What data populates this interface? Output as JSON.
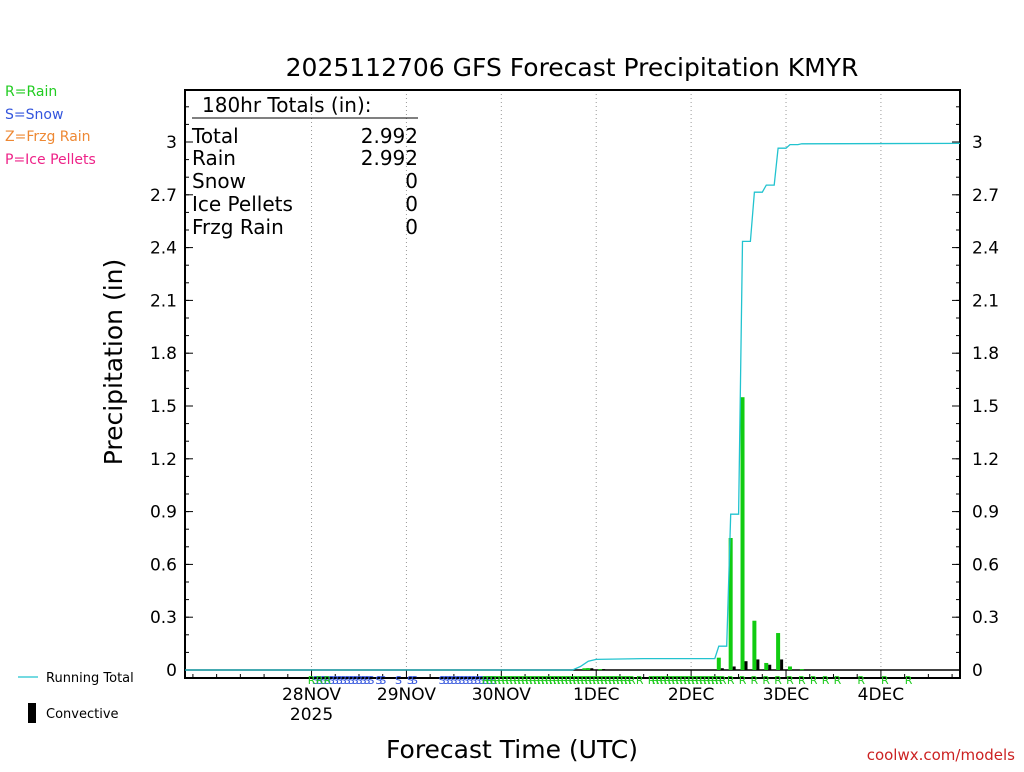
{
  "chart_data": {
    "type": "bar",
    "title": "2025112706 GFS Forecast Precipitation KMYR",
    "xlabel": "Forecast Time (UTC)",
    "ylabel": "Precipitation (in)",
    "ylim": [
      0,
      3.3
    ],
    "xlim_hours": [
      -14,
      182
    ],
    "yticks": [
      0,
      0.3,
      0.6,
      0.9,
      1.2,
      1.5,
      1.8,
      2.1,
      2.4,
      2.7,
      3
    ],
    "ytick_labels": [
      "0",
      "0.3",
      "0.6",
      "0.9",
      "1.2",
      "1.5",
      "1.8",
      "2.1",
      "2.4",
      "2.7",
      "3"
    ],
    "xticks": [
      {
        "hour": 18,
        "label": "28NOV",
        "sublabel": "2025"
      },
      {
        "hour": 42,
        "label": "29NOV",
        "sublabel": ""
      },
      {
        "hour": 66,
        "label": "30NOV",
        "sublabel": ""
      },
      {
        "hour": 90,
        "label": "1DEC",
        "sublabel": ""
      },
      {
        "hour": 114,
        "label": "2DEC",
        "sublabel": ""
      },
      {
        "hour": 138,
        "label": "3DEC",
        "sublabel": ""
      },
      {
        "hour": 162,
        "label": "4DEC",
        "sublabel": ""
      }
    ],
    "grid": "vertical-dotted",
    "legend_types": [
      {
        "code": "R",
        "text": "R=Rain",
        "color": "#22cc22"
      },
      {
        "code": "S",
        "text": "S=Snow",
        "color": "#3355dd"
      },
      {
        "code": "Z",
        "text": "Z=Frzg Rain",
        "color": "#ee8833"
      },
      {
        "code": "P",
        "text": "P=Ice Pellets",
        "color": "#ee2288"
      }
    ],
    "legend_series": {
      "running_total": "Running Total",
      "convective": "Convective"
    },
    "colors": {
      "running_total": "#22c3cf",
      "precip_bar": "#11cc11",
      "convective": "#000000",
      "grid": "#999999"
    },
    "totals": {
      "header": "180hr Totals (in):",
      "rows": [
        {
          "label": "Total",
          "value": "2.992"
        },
        {
          "label": "Rain",
          "value": "2.992"
        },
        {
          "label": "Snow",
          "value": "0"
        },
        {
          "label": "Ice Pellets",
          "value": "0"
        },
        {
          "label": "Frzg Rain",
          "value": "0"
        }
      ]
    },
    "bars": [
      {
        "hour": 87,
        "value": 0.01,
        "conv": 0.01
      },
      {
        "hour": 88,
        "value": 0.01,
        "conv": 0.01
      },
      {
        "hour": 91,
        "value": 0.005,
        "conv": 0.005
      },
      {
        "hour": 121,
        "value": 0.07,
        "conv": 0.01
      },
      {
        "hour": 124,
        "value": 0.75,
        "conv": 0.02
      },
      {
        "hour": 127,
        "value": 1.55,
        "conv": 0.05
      },
      {
        "hour": 130,
        "value": 0.28,
        "conv": 0.06
      },
      {
        "hour": 133,
        "value": 0.04,
        "conv": 0.03
      },
      {
        "hour": 136,
        "value": 0.21,
        "conv": 0.06
      },
      {
        "hour": 139,
        "value": 0.02,
        "conv": 0.0
      },
      {
        "hour": 142,
        "value": 0.005,
        "conv": 0.0
      }
    ],
    "running_total": [
      [
        -14,
        0
      ],
      [
        84,
        0
      ],
      [
        86,
        0.02
      ],
      [
        88,
        0.05
      ],
      [
        90,
        0.06
      ],
      [
        102,
        0.065
      ],
      [
        120,
        0.065
      ],
      [
        121,
        0.135
      ],
      [
        123,
        0.135
      ],
      [
        124,
        0.885
      ],
      [
        126,
        0.885
      ],
      [
        127,
        2.435
      ],
      [
        129,
        2.435
      ],
      [
        130,
        2.715
      ],
      [
        132,
        2.715
      ],
      [
        133,
        2.755
      ],
      [
        135,
        2.755
      ],
      [
        136,
        2.965
      ],
      [
        138,
        2.965
      ],
      [
        139,
        2.985
      ],
      [
        141,
        2.985
      ],
      [
        142,
        2.99
      ],
      [
        182,
        2.992
      ]
    ],
    "type_markers": {
      "S": [
        19,
        20,
        21,
        22,
        23,
        24,
        25,
        26,
        27,
        28,
        29,
        30,
        31,
        32,
        33,
        35,
        36,
        40,
        43,
        44,
        51,
        52,
        53,
        54,
        55,
        56,
        57,
        58,
        59,
        60,
        61,
        62,
        63,
        64
      ],
      "R": [
        18,
        20,
        22,
        62,
        63,
        64,
        65,
        66,
        67,
        68,
        69,
        70,
        71,
        72,
        73,
        74,
        75,
        76,
        77,
        78,
        79,
        80,
        81,
        82,
        83,
        84,
        85,
        86,
        87,
        88,
        89,
        90,
        91,
        92,
        93,
        94,
        95,
        96,
        97,
        98,
        99,
        101,
        104,
        105,
        106,
        107,
        108,
        109,
        110,
        111,
        112,
        113,
        114,
        115,
        116,
        117,
        118,
        119,
        120,
        121,
        122,
        124,
        127,
        130,
        133,
        136,
        139,
        142,
        145,
        148,
        151,
        157,
        163,
        169
      ]
    }
  },
  "footer": {
    "credit": "coolwx.com/models"
  }
}
